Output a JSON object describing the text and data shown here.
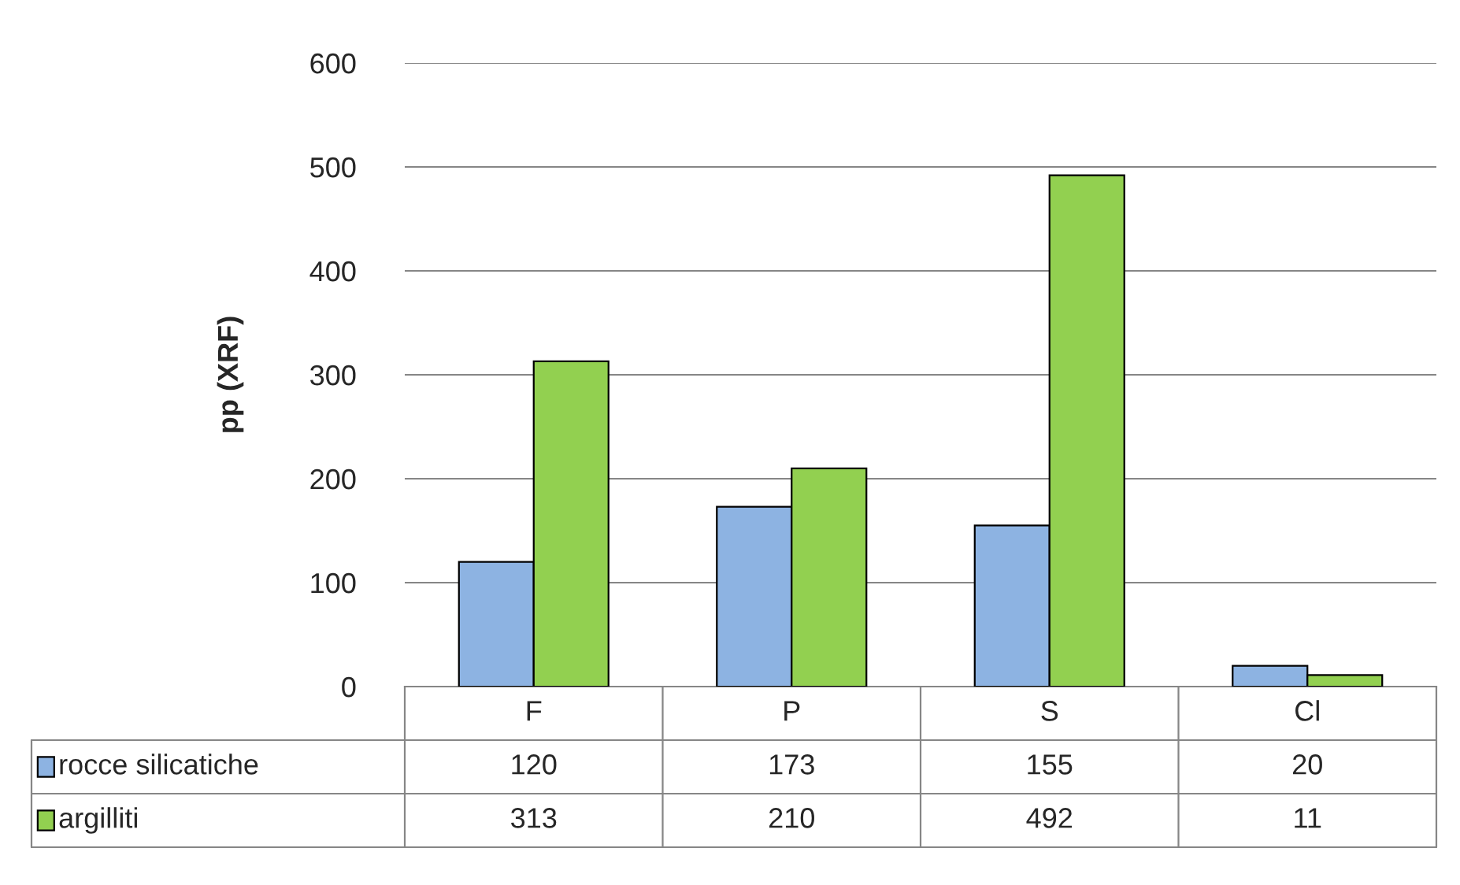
{
  "chart_data": {
    "type": "bar",
    "ylabel": "pp (XRF)",
    "categories": [
      "F",
      "P",
      "S",
      "Cl"
    ],
    "series": [
      {
        "name": "rocce silicatiche",
        "color": "#8db3e2",
        "values": [
          120,
          173,
          155,
          20
        ]
      },
      {
        "name": "argilliti",
        "color": "#92d050",
        "values": [
          313,
          210,
          492,
          11
        ]
      }
    ],
    "ylim": [
      0,
      600
    ],
    "yticks": [
      0,
      100,
      200,
      300,
      400,
      500,
      600
    ],
    "grid": "y",
    "legend": "bottom",
    "data_labels": true
  }
}
